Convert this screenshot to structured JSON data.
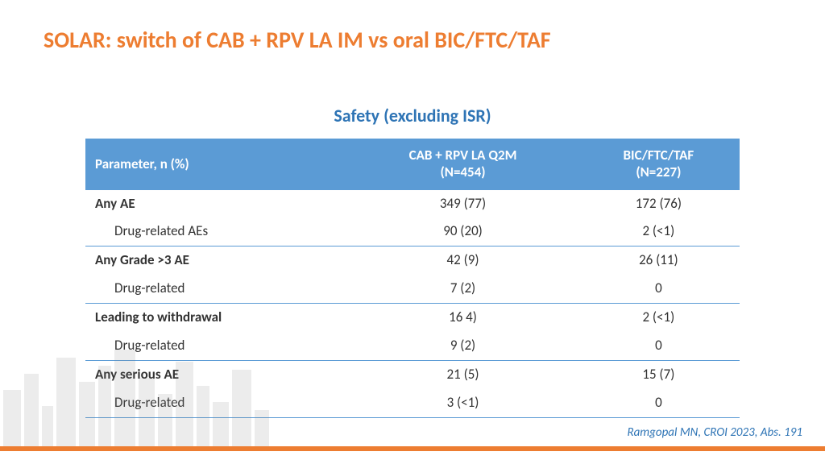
{
  "colors": {
    "title": "#ed7d31",
    "subtitle": "#2e74b5",
    "header_bg": "#5b9bd5",
    "header_text": "#ffffff",
    "border": "#5b9bd5",
    "body_text": "#333333",
    "citation": "#2e74b5",
    "footer_bar": "#ed7d31",
    "cityscape": "#808080"
  },
  "title": "SOLAR: switch of CAB + RPV LA IM vs oral BIC/FTC/TAF",
  "subtitle": "Safety (excluding ISR)",
  "table": {
    "columns": [
      {
        "label_line1": "Parameter, n (%)",
        "label_line2": ""
      },
      {
        "label_line1": "CAB + RPV LA Q2M",
        "label_line2": "(N=454)"
      },
      {
        "label_line1": "BIC/FTC/TAF",
        "label_line2": "(N=227)"
      }
    ],
    "groups": [
      {
        "main": {
          "param": "Any AE",
          "col1": "349 (77)",
          "col2": "172 (76)"
        },
        "sub": {
          "param": "Drug-related AEs",
          "col1": "90 (20)",
          "col2": "2 (<1)"
        }
      },
      {
        "main": {
          "param": "Any Grade >3 AE",
          "col1": "42 (9)",
          "col2": "26 (11)"
        },
        "sub": {
          "param": "Drug-related",
          "col1": "7 (2)",
          "col2": "0"
        }
      },
      {
        "main": {
          "param": "Leading to withdrawal",
          "col1": "16 4)",
          "col2": "2 (<1)"
        },
        "sub": {
          "param": "Drug-related",
          "col1": "9 (2)",
          "col2": "0"
        }
      },
      {
        "main": {
          "param": "Any serious AE",
          "col1": "21 (5)",
          "col2": "15 (7)"
        },
        "sub": {
          "param": "Drug-related",
          "col1": "3 (<1)",
          "col2": "0"
        }
      }
    ]
  },
  "citation": "Ramgopal MN, CROI 2023, Abs. 191"
}
